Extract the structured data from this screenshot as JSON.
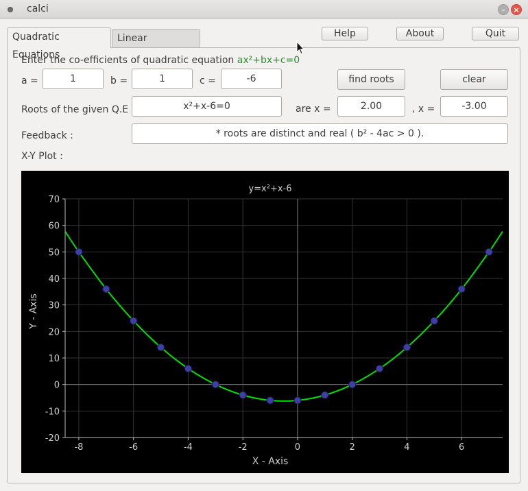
{
  "window": {
    "title": "calci"
  },
  "tabs": [
    {
      "label": "Quadratic Equations",
      "active": true
    },
    {
      "label": "Linear Equations",
      "active": false
    }
  ],
  "top_buttons": {
    "help": "Help",
    "about": "About",
    "quit": "Quit"
  },
  "form": {
    "prompt": "Enter the co-efficients of quadratic equation ",
    "prompt_equation": "ax²+bx+c=0",
    "a_label": "a =",
    "b_label": "b =",
    "c_label": "c =",
    "a_value": "1",
    "b_value": "1",
    "c_value": "-6",
    "find_roots": "find roots",
    "clear": "clear",
    "roots_label": "Roots of the given Q.E",
    "equation_display": "x²+x-6=0",
    "are_x_label": "are  x =",
    "root1": "2.00",
    "comma_x_label": ", x =",
    "root2": "-3.00",
    "feedback_label": "Feedback   :",
    "feedback_text": "* roots are distinct and real ( b² - 4ac > 0 ).",
    "plot_label": "X-Y Plot     :"
  },
  "chart_data": {
    "type": "line",
    "title": "y=x²+x-6",
    "xlabel": "X - Axis",
    "ylabel": "Y - Axis",
    "xlim": [
      -8.5,
      7.5
    ],
    "ylim": [
      -20,
      70
    ],
    "xticks": [
      -8,
      -6,
      -4,
      -2,
      0,
      2,
      4,
      6
    ],
    "yticks": [
      -20,
      -10,
      0,
      10,
      20,
      30,
      40,
      50,
      60,
      70
    ],
    "grid": true,
    "line_color": "#00e000",
    "marker_color": "#3f3fa8",
    "series": [
      {
        "x": [
          -8,
          -7,
          -6,
          -5,
          -4,
          -3,
          -2,
          -1,
          0,
          1,
          2,
          3,
          4,
          5,
          6,
          7
        ],
        "y": [
          50,
          36,
          24,
          14,
          6,
          0,
          -4,
          -6,
          -6,
          -4,
          0,
          6,
          14,
          24,
          36,
          50
        ]
      }
    ]
  }
}
